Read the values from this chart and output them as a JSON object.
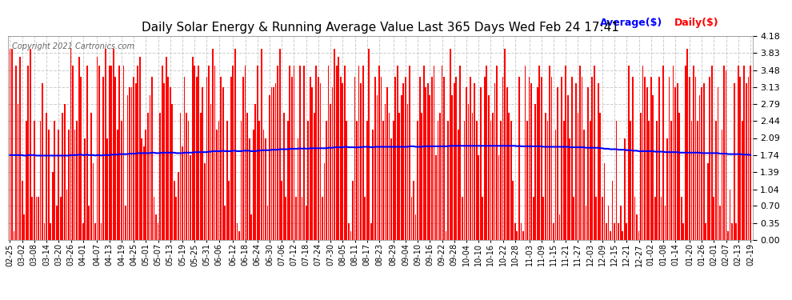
{
  "title": "Daily Solar Energy & Running Average Value Last 365 Days Wed Feb 24 17:41",
  "copyright": "Copyright 2021 Cartronics.com",
  "legend_avg": "Average($)",
  "legend_daily": "Daily($)",
  "bar_color": "#ff0000",
  "avg_color": "#0000ff",
  "background_color": "#ffffff",
  "grid_color": "#cccccc",
  "yticks": [
    0.0,
    0.35,
    0.7,
    1.04,
    1.39,
    1.74,
    2.09,
    2.44,
    2.79,
    3.13,
    3.48,
    3.83,
    4.18
  ],
  "ylim": [
    0.0,
    4.18
  ],
  "x_labels": [
    "02-25",
    "03-02",
    "03-08",
    "03-14",
    "03-20",
    "03-26",
    "04-01",
    "04-07",
    "04-13",
    "04-19",
    "04-25",
    "05-01",
    "05-07",
    "05-13",
    "05-19",
    "05-25",
    "05-31",
    "06-06",
    "06-12",
    "06-18",
    "06-24",
    "06-30",
    "07-06",
    "07-12",
    "07-18",
    "07-24",
    "07-30",
    "08-05",
    "08-11",
    "08-17",
    "08-23",
    "08-29",
    "09-04",
    "09-10",
    "09-16",
    "09-22",
    "09-28",
    "10-04",
    "10-10",
    "10-16",
    "10-22",
    "10-28",
    "11-03",
    "11-09",
    "11-15",
    "11-21",
    "11-27",
    "12-03",
    "12-09",
    "12-15",
    "12-21",
    "12-27",
    "01-02",
    "01-08",
    "01-14",
    "01-20",
    "01-26",
    "02-01",
    "02-07",
    "02-13",
    "02-19"
  ],
  "daily_values": [
    3.92,
    3.92,
    0.18,
    3.57,
    2.78,
    3.75,
    1.22,
    0.53,
    2.44,
    3.57,
    3.92,
    0.88,
    2.44,
    0.88,
    0.88,
    2.44,
    3.22,
    0.35,
    2.61,
    2.26,
    0.35,
    1.4,
    2.44,
    0.7,
    2.26,
    0.88,
    2.61,
    2.79,
    1.04,
    2.26,
    3.92,
    3.57,
    2.26,
    2.44,
    3.75,
    3.35,
    0.35,
    2.09,
    3.57,
    0.7,
    2.61,
    1.57,
    0.35,
    3.75,
    3.57,
    0.35,
    3.35,
    3.92,
    2.09,
    3.57,
    3.57,
    3.92,
    3.35,
    2.26,
    3.57,
    2.44,
    3.57,
    0.7,
    2.96,
    3.13,
    3.13,
    3.35,
    3.22,
    3.57,
    3.75,
    2.09,
    1.92,
    2.26,
    2.61,
    2.96,
    3.35,
    0.88,
    0.53,
    0.35,
    2.61,
    3.57,
    3.22,
    3.75,
    3.35,
    3.13,
    2.79,
    1.22,
    0.88,
    1.4,
    2.61,
    1.92,
    3.35,
    2.61,
    2.44,
    1.74,
    3.75,
    3.57,
    3.35,
    3.57,
    2.61,
    3.13,
    1.57,
    3.35,
    3.57,
    2.79,
    3.92,
    3.57,
    2.26,
    2.44,
    3.35,
    3.13,
    0.7,
    2.44,
    1.22,
    3.35,
    3.57,
    3.92,
    0.35,
    0.18,
    2.44,
    3.35,
    3.57,
    2.61,
    2.09,
    0.53,
    2.26,
    2.79,
    3.57,
    2.44,
    3.92,
    2.26,
    2.09,
    0.7,
    2.96,
    3.13,
    3.13,
    3.22,
    3.57,
    3.92,
    1.22,
    2.61,
    0.88,
    2.44,
    3.57,
    3.35,
    3.57,
    0.88,
    2.09,
    3.57,
    0.88,
    3.57,
    0.7,
    2.44,
    3.35,
    3.13,
    2.61,
    3.57,
    3.35,
    3.22,
    0.88,
    1.57,
    2.44,
    3.57,
    2.79,
    3.13,
    3.92,
    3.57,
    3.75,
    3.35,
    3.22,
    3.57,
    2.44,
    0.35,
    0.18,
    1.22,
    3.35,
    2.44,
    3.57,
    3.22,
    3.57,
    0.88,
    2.44,
    3.92,
    0.35,
    2.26,
    3.35,
    2.96,
    3.57,
    3.35,
    2.44,
    2.79,
    3.13,
    2.61,
    2.09,
    2.44,
    3.35,
    3.57,
    2.61,
    2.96,
    3.22,
    3.35,
    2.79,
    3.57,
    0.88,
    1.22,
    0.53,
    2.44,
    3.35,
    2.61,
    3.57,
    3.13,
    3.22,
    2.96,
    3.35,
    3.57,
    1.74,
    2.44,
    2.61,
    3.57,
    3.35,
    0.18,
    2.44,
    3.92,
    2.96,
    3.22,
    3.35,
    2.26,
    3.57,
    0.88,
    2.44,
    3.13,
    2.79,
    3.35,
    2.61,
    3.22,
    2.44,
    1.74,
    3.13,
    0.88,
    3.35,
    3.57,
    2.96,
    2.44,
    2.61,
    3.22,
    3.57,
    1.74,
    2.44,
    3.35,
    3.92,
    3.13,
    2.61,
    2.44,
    1.22,
    0.35,
    0.18,
    3.35,
    0.35,
    0.18,
    3.57,
    2.44,
    3.35,
    3.22,
    0.88,
    2.79,
    3.13,
    3.57,
    3.35,
    0.88,
    2.61,
    2.44,
    3.57,
    3.35,
    0.35,
    2.26,
    3.13,
    0.53,
    3.35,
    2.44,
    3.57,
    2.96,
    2.09,
    3.35,
    0.88,
    3.22,
    2.61,
    3.57,
    3.35,
    2.26,
    0.7,
    3.13,
    2.44,
    3.35,
    3.57,
    0.88,
    3.22,
    2.61,
    0.88,
    1.57,
    0.35,
    0.7,
    0.18,
    1.22,
    0.35,
    2.44,
    0.35,
    0.7,
    0.18,
    2.09,
    0.35,
    3.57,
    2.44,
    3.35,
    0.88,
    0.53,
    0.18,
    2.61,
    3.57,
    3.35,
    3.13,
    2.44,
    3.35,
    2.96,
    0.88,
    2.44,
    3.35,
    0.88,
    3.57,
    0.7,
    2.09,
    3.35,
    2.44,
    3.57,
    3.13,
    3.22,
    2.61,
    0.88,
    0.35,
    3.57,
    3.92,
    3.35,
    2.44,
    3.57,
    3.35,
    2.44,
    2.96,
    3.13,
    3.22,
    0.35,
    1.57,
    3.35,
    3.57,
    0.88,
    2.44,
    3.13,
    0.7,
    2.26,
    3.57,
    3.48,
    0.18,
    1.04,
    0.35,
    3.22,
    0.35,
    3.57,
    3.35,
    2.44,
    3.57,
    3.22,
    3.35,
    3.57
  ],
  "avg_values": [
    1.74,
    1.74,
    1.74,
    1.74,
    1.74,
    1.74,
    1.74,
    1.73,
    1.73,
    1.74,
    1.74,
    1.74,
    1.74,
    1.73,
    1.73,
    1.73,
    1.73,
    1.73,
    1.73,
    1.73,
    1.73,
    1.73,
    1.73,
    1.73,
    1.73,
    1.73,
    1.73,
    1.73,
    1.73,
    1.73,
    1.74,
    1.74,
    1.74,
    1.74,
    1.75,
    1.75,
    1.74,
    1.74,
    1.75,
    1.74,
    1.74,
    1.74,
    1.73,
    1.74,
    1.74,
    1.73,
    1.74,
    1.74,
    1.74,
    1.74,
    1.75,
    1.75,
    1.75,
    1.75,
    1.76,
    1.76,
    1.76,
    1.76,
    1.76,
    1.77,
    1.77,
    1.77,
    1.77,
    1.78,
    1.78,
    1.78,
    1.78,
    1.78,
    1.78,
    1.78,
    1.79,
    1.79,
    1.78,
    1.78,
    1.78,
    1.79,
    1.79,
    1.79,
    1.79,
    1.79,
    1.79,
    1.79,
    1.78,
    1.78,
    1.78,
    1.78,
    1.79,
    1.79,
    1.79,
    1.79,
    1.79,
    1.8,
    1.8,
    1.8,
    1.8,
    1.8,
    1.8,
    1.8,
    1.81,
    1.81,
    1.82,
    1.82,
    1.82,
    1.82,
    1.82,
    1.83,
    1.82,
    1.82,
    1.82,
    1.82,
    1.83,
    1.83,
    1.82,
    1.82,
    1.82,
    1.83,
    1.83,
    1.83,
    1.83,
    1.82,
    1.82,
    1.82,
    1.83,
    1.83,
    1.84,
    1.84,
    1.84,
    1.84,
    1.84,
    1.85,
    1.85,
    1.85,
    1.85,
    1.86,
    1.86,
    1.86,
    1.86,
    1.86,
    1.87,
    1.87,
    1.87,
    1.87,
    1.87,
    1.88,
    1.87,
    1.88,
    1.87,
    1.87,
    1.88,
    1.88,
    1.88,
    1.88,
    1.88,
    1.88,
    1.88,
    1.88,
    1.88,
    1.89,
    1.89,
    1.89,
    1.9,
    1.9,
    1.9,
    1.9,
    1.9,
    1.91,
    1.91,
    1.9,
    1.9,
    1.9,
    1.9,
    1.9,
    1.9,
    1.9,
    1.91,
    1.91,
    1.91,
    1.91,
    1.9,
    1.9,
    1.91,
    1.91,
    1.91,
    1.91,
    1.91,
    1.91,
    1.91,
    1.91,
    1.91,
    1.91,
    1.91,
    1.91,
    1.91,
    1.91,
    1.91,
    1.91,
    1.91,
    1.92,
    1.92,
    1.92,
    1.91,
    1.91,
    1.91,
    1.91,
    1.92,
    1.92,
    1.92,
    1.92,
    1.92,
    1.92,
    1.92,
    1.92,
    1.92,
    1.92,
    1.92,
    1.92,
    1.92,
    1.93,
    1.93,
    1.93,
    1.93,
    1.93,
    1.93,
    1.93,
    1.93,
    1.93,
    1.93,
    1.93,
    1.93,
    1.93,
    1.93,
    1.93,
    1.93,
    1.93,
    1.93,
    1.93,
    1.93,
    1.93,
    1.93,
    1.93,
    1.93,
    1.93,
    1.93,
    1.93,
    1.93,
    1.93,
    1.93,
    1.93,
    1.93,
    1.93,
    1.92,
    1.93,
    1.92,
    1.92,
    1.92,
    1.92,
    1.92,
    1.92,
    1.92,
    1.92,
    1.92,
    1.92,
    1.92,
    1.91,
    1.91,
    1.91,
    1.91,
    1.91,
    1.91,
    1.91,
    1.91,
    1.91,
    1.91,
    1.91,
    1.91,
    1.91,
    1.9,
    1.9,
    1.9,
    1.9,
    1.9,
    1.9,
    1.9,
    1.9,
    1.89,
    1.89,
    1.89,
    1.89,
    1.89,
    1.89,
    1.89,
    1.88,
    1.88,
    1.87,
    1.87,
    1.87,
    1.86,
    1.86,
    1.86,
    1.86,
    1.85,
    1.85,
    1.85,
    1.85,
    1.84,
    1.84,
    1.84,
    1.83,
    1.83,
    1.83,
    1.82,
    1.82,
    1.82,
    1.82,
    1.82,
    1.82,
    1.82,
    1.82,
    1.81,
    1.81,
    1.81,
    1.81,
    1.81,
    1.8,
    1.8,
    1.8,
    1.8,
    1.8,
    1.8,
    1.8,
    1.79,
    1.79,
    1.79,
    1.79,
    1.79,
    1.79,
    1.79,
    1.79,
    1.79,
    1.79,
    1.79,
    1.78,
    1.78,
    1.78,
    1.78,
    1.78,
    1.78,
    1.78,
    1.78,
    1.78,
    1.77,
    1.77,
    1.77,
    1.77,
    1.76,
    1.76,
    1.76,
    1.76,
    1.76,
    1.76,
    1.76,
    1.75,
    1.75,
    1.75,
    1.75,
    1.74
  ],
  "title_fontsize": 11,
  "copyright_fontsize": 7,
  "legend_fontsize": 9,
  "tick_fontsize": 8,
  "xtick_fontsize": 7
}
